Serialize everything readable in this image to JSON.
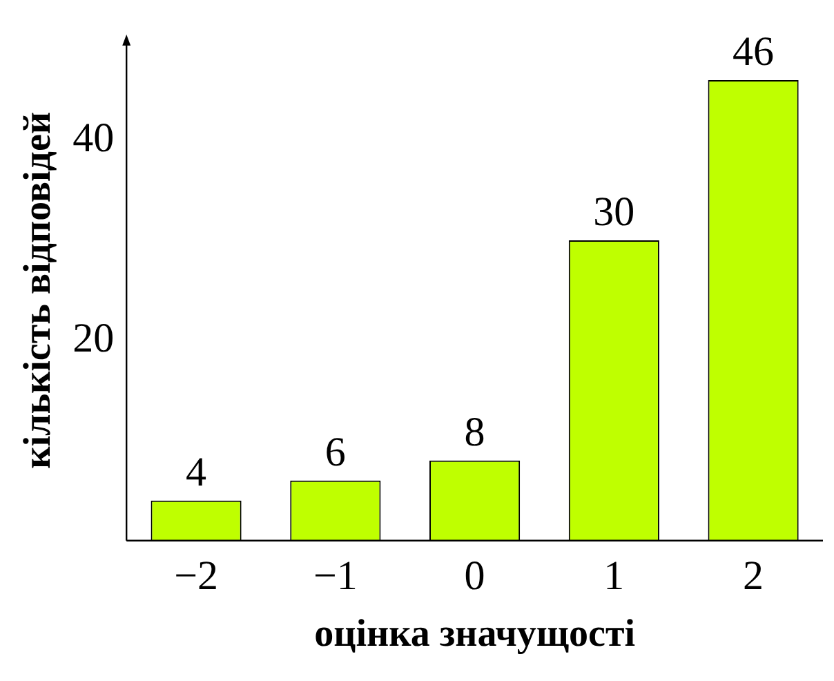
{
  "chart_data": {
    "type": "bar",
    "xlabel": "оцінка значущості",
    "ylabel": "кількість відповідей",
    "categories": [
      "−2",
      "−1",
      "0",
      "1",
      "2"
    ],
    "values": [
      4,
      6,
      8,
      30,
      46
    ],
    "color": "#bfff00",
    "ylim": [
      0,
      50
    ],
    "yticks": [
      20,
      40
    ],
    "data_labels": true,
    "grid": false,
    "legend": false
  }
}
